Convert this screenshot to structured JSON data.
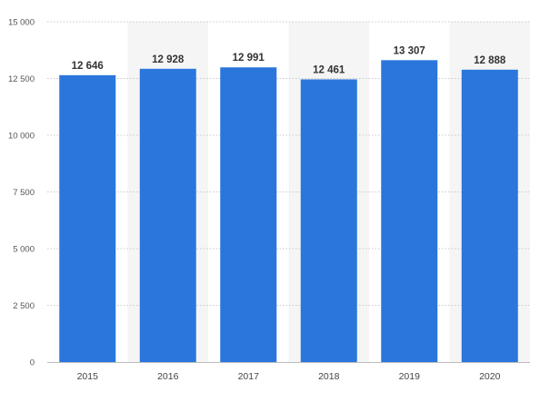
{
  "chart_data": {
    "type": "bar",
    "categories": [
      "2015",
      "2016",
      "2017",
      "2018",
      "2019",
      "2020"
    ],
    "values": [
      12646,
      12928,
      12991,
      12461,
      13307,
      12888
    ],
    "value_labels": [
      "12 646",
      "12 928",
      "12 991",
      "12 461",
      "13 307",
      "12 888"
    ],
    "ylim": [
      0,
      15000
    ],
    "yticks": [
      0,
      2500,
      5000,
      7500,
      10000,
      12500,
      15000
    ],
    "ytick_labels": [
      "0",
      "2 500",
      "5 000",
      "7 500",
      "10 000",
      "12 500",
      "15 000"
    ],
    "title": "",
    "xlabel": "",
    "ylabel": "",
    "grid": true,
    "bar_color": "#2a76dd",
    "band_color": "#f5f5f5"
  }
}
